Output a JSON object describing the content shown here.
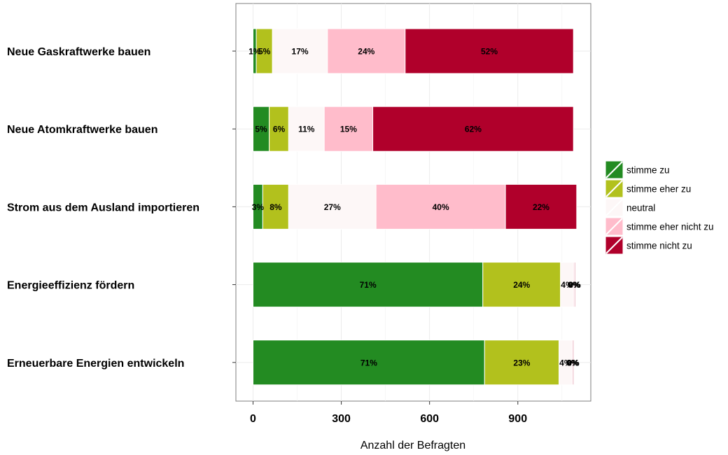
{
  "chart_data": {
    "type": "bar",
    "orientation": "horizontal",
    "stacked": true,
    "categories": [
      "Neue Gaskraftwerke bauen",
      "Neue Atomkraftwerke bauen",
      "Strom aus dem Ausland importieren",
      "Energieeffizienz fördern",
      "Erneuerbare Energien entwickeln"
    ],
    "xlabel": "Anzahl der Befragten",
    "ylabel": "",
    "title": "",
    "xlim": [
      -60,
      1150
    ],
    "xticks": [
      0,
      300,
      600,
      900
    ],
    "xtick_labels": [
      "0",
      "300",
      "600",
      "900"
    ],
    "grid": true,
    "legend_position": "right",
    "series": [
      {
        "name": "stimme zu",
        "color": "#238b22",
        "values": [
          11,
          55,
          33,
          781,
          787
        ],
        "labels": [
          "1%",
          "5%",
          "3%",
          "71%",
          "71%"
        ]
      },
      {
        "name": "stimme eher zu",
        "color": "#b2c11d",
        "values": [
          55,
          66,
          88,
          264,
          253
        ],
        "labels": [
          "5%",
          "6%",
          "8%",
          "24%",
          "23%"
        ]
      },
      {
        "name": "neutral",
        "color": "#fdf7f7",
        "values": [
          187,
          121,
          297,
          44,
          44
        ],
        "labels": [
          "17%",
          "11%",
          "27%",
          "4%",
          "4%"
        ]
      },
      {
        "name": "stimme eher nicht zu",
        "color": "#ffbccb",
        "values": [
          264,
          165,
          440,
          3,
          3
        ],
        "labels": [
          "24%",
          "15%",
          "40%",
          "0%",
          "0%"
        ]
      },
      {
        "name": "stimme nicht zu",
        "color": "#b0002b",
        "values": [
          572,
          682,
          242,
          3,
          3
        ],
        "labels": [
          "52%",
          "62%",
          "22%",
          "0%",
          "0%"
        ]
      }
    ]
  }
}
